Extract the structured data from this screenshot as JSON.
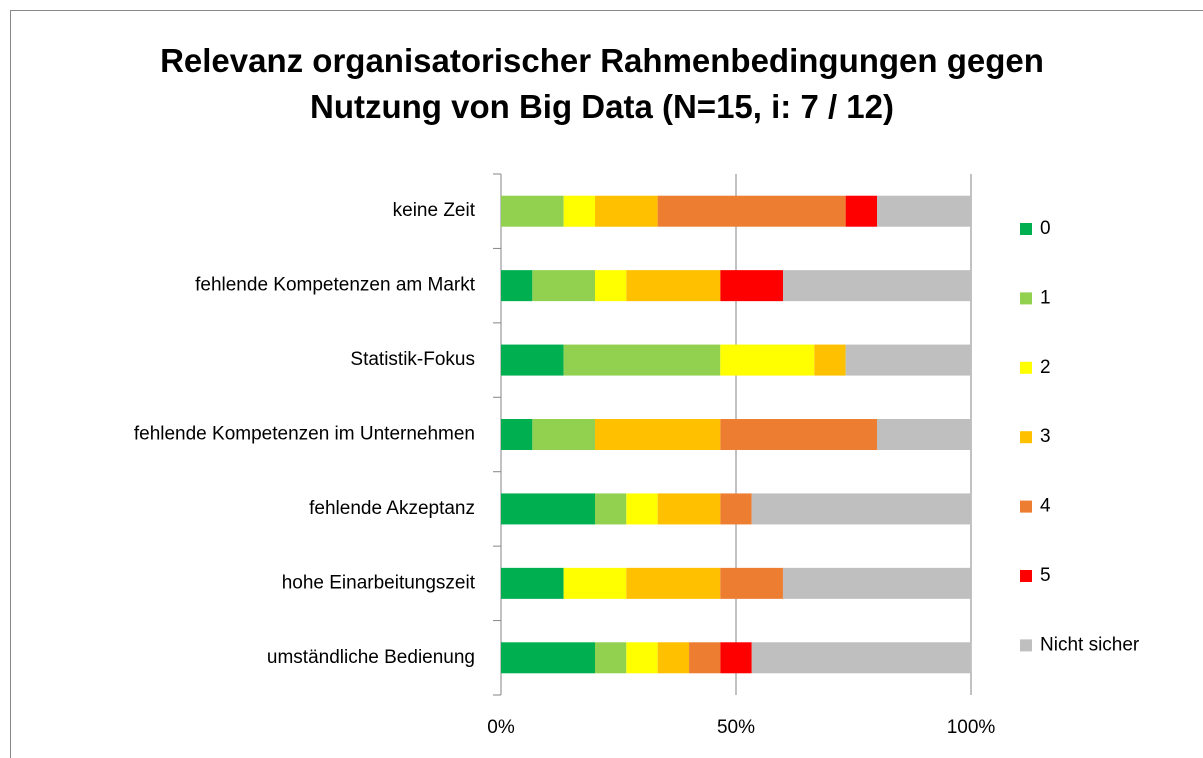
{
  "chart_data": {
    "type": "stacked_bar_horizontal",
    "title": "Relevanz organisatorischer Rahmenbedingungen gegen Nutzung von Big Data (N=15, i: 7 / 12)",
    "categories": [
      "keine Zeit",
      "fehlende Kompetenzen am Markt",
      "Statistik-Fokus",
      "fehlende Kompetenzen im Unternehmen",
      "fehlende Akzeptanz",
      "hohe Einarbeitungszeit",
      "umständliche Bedienung"
    ],
    "series": [
      {
        "name": "0",
        "color": "#00b050",
        "values": [
          0,
          6.67,
          13.33,
          6.67,
          20,
          13.33,
          20
        ]
      },
      {
        "name": "1",
        "color": "#92d050",
        "values": [
          13.33,
          13.33,
          33.33,
          13.33,
          6.67,
          0,
          6.67
        ]
      },
      {
        "name": "2",
        "color": "#ffff00",
        "values": [
          6.67,
          6.67,
          20,
          0,
          6.67,
          13.33,
          6.67
        ]
      },
      {
        "name": "3",
        "color": "#ffc000",
        "values": [
          13.33,
          20,
          6.67,
          26.67,
          13.33,
          20,
          6.67
        ]
      },
      {
        "name": "4",
        "color": "#ed7d31",
        "values": [
          40,
          0,
          0,
          33.33,
          6.67,
          13.33,
          6.67
        ]
      },
      {
        "name": "5",
        "color": "#ff0000",
        "values": [
          6.67,
          13.33,
          0,
          0,
          0,
          0,
          6.67
        ]
      },
      {
        "name": "Nicht sicher",
        "color": "#bfbfbf",
        "values": [
          20,
          40,
          26.67,
          20,
          46.67,
          40,
          46.67
        ]
      }
    ],
    "xlim": [
      0,
      100
    ],
    "xticks": [
      {
        "value": 0,
        "label": "0%"
      },
      {
        "value": 50,
        "label": "50%"
      },
      {
        "value": 100,
        "label": "100%"
      }
    ],
    "grid": true,
    "legend": "right"
  }
}
